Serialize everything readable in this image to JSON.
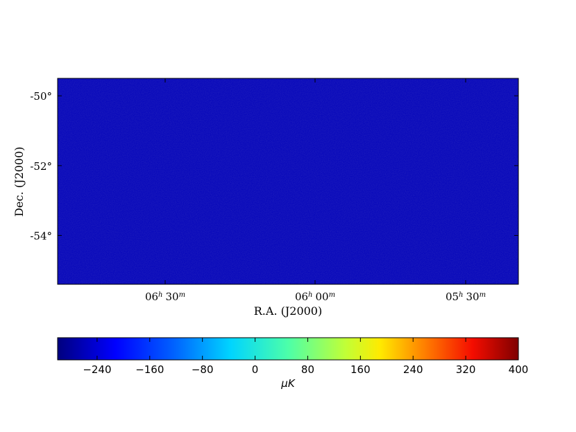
{
  "chart_data": {
    "type": "heatmap",
    "x_label": "R.A. (J2000)",
    "y_label": "Dec. (J2000)",
    "x_ticks": [
      {
        "h": "06",
        "m": "30"
      },
      {
        "h": "06",
        "m": "00"
      },
      {
        "h": "05",
        "m": "30"
      }
    ],
    "y_ticks": [
      "-50°",
      "-52°",
      "-54°"
    ],
    "y_tick_values": [
      -50,
      -52,
      -54
    ],
    "dec_range": [
      -49.5,
      -55.4
    ],
    "colorbar": {
      "label": "μK",
      "ticks": [
        "−240",
        "−160",
        "−80",
        "0",
        "80",
        "160",
        "240",
        "320",
        "400"
      ],
      "tick_values": [
        -240,
        -160,
        -80,
        0,
        80,
        160,
        240,
        320,
        400
      ],
      "range": [
        -300,
        400
      ],
      "colormap": "jet"
    }
  }
}
